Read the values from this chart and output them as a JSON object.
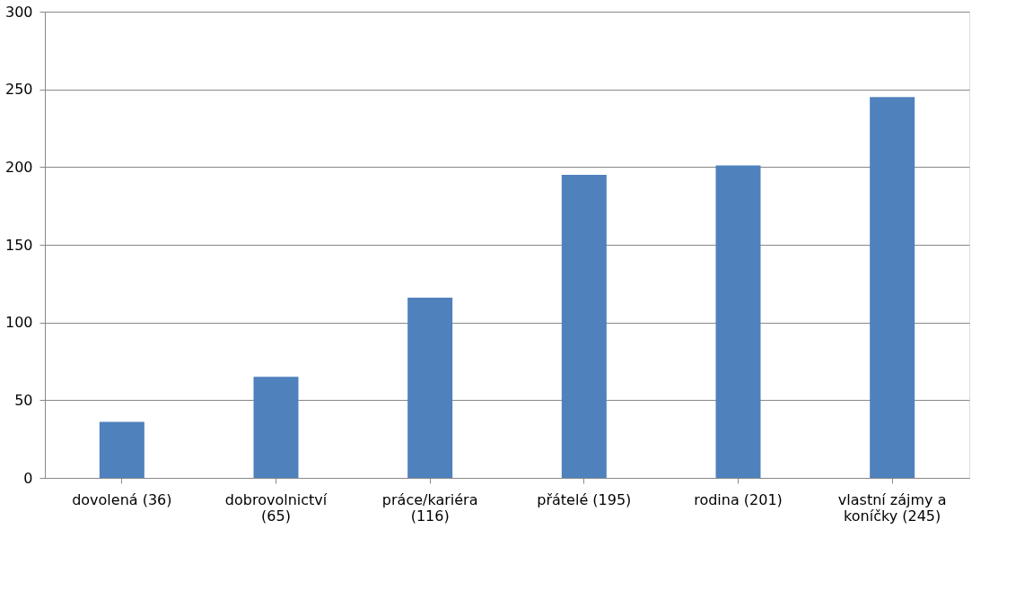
{
  "chart_data": {
    "type": "bar",
    "categories": [
      "dovolená (36)",
      "dobrovolnictví (65)",
      "práce/kariéra (116)",
      "přátelé (195)",
      "rodina (201)",
      "vlastní zájmy a koníčky (245)"
    ],
    "values": [
      36,
      65,
      116,
      195,
      201,
      245
    ],
    "color": "#4f81bd",
    "ylim": [
      0,
      300
    ],
    "yticks": [
      0,
      50,
      100,
      150,
      200,
      250,
      300
    ],
    "grid": "y"
  }
}
